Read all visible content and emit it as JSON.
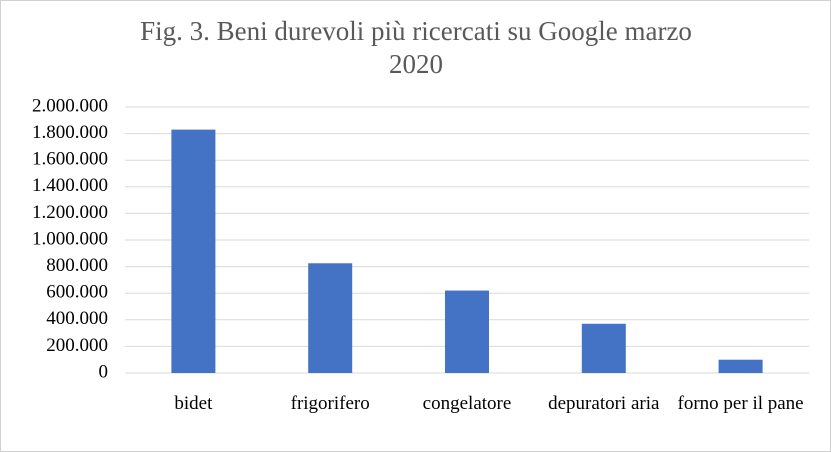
{
  "chart_data": {
    "type": "bar",
    "title": "Fig. 3. Beni durevoli più ricercati su Google marzo 2020",
    "categories": [
      "bidet",
      "frigorifero",
      "congelatore",
      "depuratori aria",
      "forno per il pane"
    ],
    "values": [
      1830000,
      825000,
      620000,
      370000,
      100000
    ],
    "color": "#4472c4",
    "ylim": [
      0,
      2000000
    ],
    "yticks": [
      0,
      {
        "value": 200000,
        "label": "200.000"
      },
      {
        "value": 400000,
        "label": "400.000"
      },
      {
        "value": 600000,
        "label": "600.000"
      },
      {
        "value": 800000,
        "label": "800.000"
      },
      {
        "value": 1000000,
        "label": "1.000.000"
      },
      {
        "value": 1200000,
        "label": "1.200.000"
      },
      {
        "value": 1400000,
        "label": "1.400.000"
      },
      {
        "value": 1600000,
        "label": "1.600.000"
      },
      {
        "value": 1800000,
        "label": "1.800.000"
      },
      {
        "value": 2000000,
        "label": "2.000.000"
      }
    ],
    "grid": true
  }
}
